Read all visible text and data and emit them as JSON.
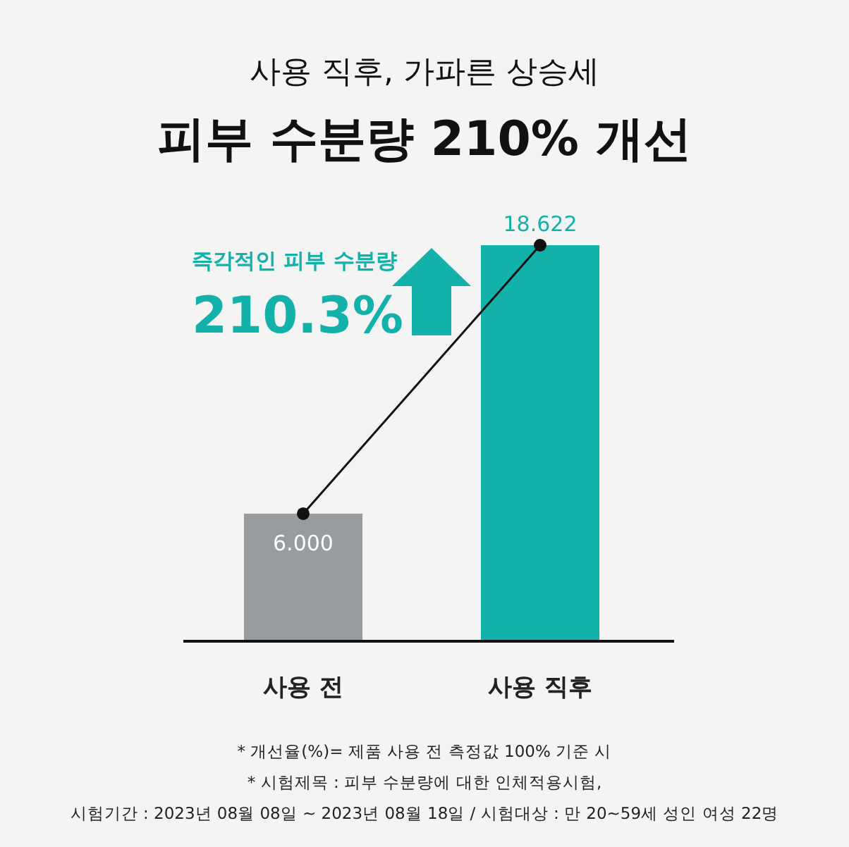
{
  "chart_data": {
    "type": "bar",
    "title": "사용 직후, 가파른 상승세",
    "subtitle": "피부 수분량 210% 개선",
    "categories": [
      "사용 전",
      "사용 직후"
    ],
    "series": [
      {
        "colors": [
          "#999c9e",
          "#12b2ab"
        ],
        "values": [
          6.0,
          18.622
        ],
        "value_labels": [
          "6.000",
          "18.622"
        ]
      },
      {
        "type": "line",
        "color": "#111111",
        "values": [
          6.0,
          18.622
        ],
        "marker": "circle"
      }
    ],
    "annotations": [
      "즉각적인 피부 수분량",
      "210.3%",
      "* 개선율(%)= 제품 사용 전 측정값 100% 기준 시",
      "* 시험제목 : 피부 수분량에 대한 인체적용시험,",
      "시험기간 : 2023년 08월 08일 ~ 2023년 08월 18일 / 시험대상 : 만 20~59세 성인 여성 22명"
    ]
  }
}
